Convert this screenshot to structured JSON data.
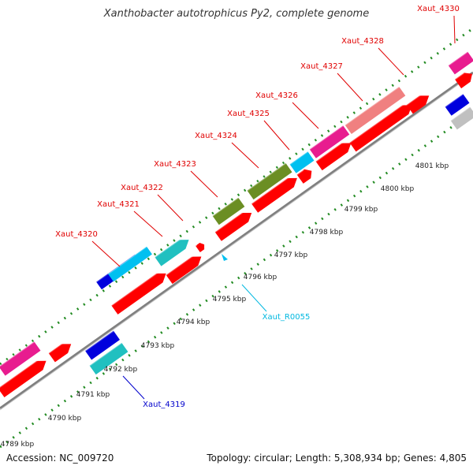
{
  "title": "Xanthobacter autotrophicus Py2, complete genome",
  "footer": {
    "accession": "Accession: NC_009720",
    "summary": "Topology: circular; Length: 5,308,934 bp; Genes: 4,805"
  },
  "colors": {
    "cds": "#ff0000",
    "trna": "#00c0f0",
    "magenta": "#e81c8f",
    "olive": "#6b8e23",
    "teal": "#20c0c0",
    "blue": "#0000dd",
    "pink": "#f08080",
    "gray": "#c0c0c0",
    "backbone": "#808080",
    "ticks": "#228b22"
  },
  "scale_labels": [
    "4789 kbp",
    "4790 kbp",
    "4791 kbp",
    "4792 kbp",
    "4793 kbp",
    "4794 kbp",
    "4795 kbp",
    "4796 kbp",
    "4797 kbp",
    "4798 kbp",
    "4799 kbp",
    "4800 kbp",
    "4801 kbp"
  ],
  "gene_labels": [
    {
      "text": "Xaut_4320",
      "color": "red"
    },
    {
      "text": "Xaut_4321",
      "color": "red"
    },
    {
      "text": "Xaut_4322",
      "color": "red"
    },
    {
      "text": "Xaut_4323",
      "color": "red"
    },
    {
      "text": "Xaut_4324",
      "color": "red"
    },
    {
      "text": "Xaut_4325",
      "color": "red"
    },
    {
      "text": "Xaut_4326",
      "color": "red"
    },
    {
      "text": "Xaut_4327",
      "color": "red"
    },
    {
      "text": "Xaut_4328",
      "color": "red"
    },
    {
      "text": "Xaut_4330",
      "color": "red"
    },
    {
      "text": "Xaut_R0055",
      "color": "cyan"
    },
    {
      "text": "Xaut_4319",
      "color": "blue"
    }
  ]
}
